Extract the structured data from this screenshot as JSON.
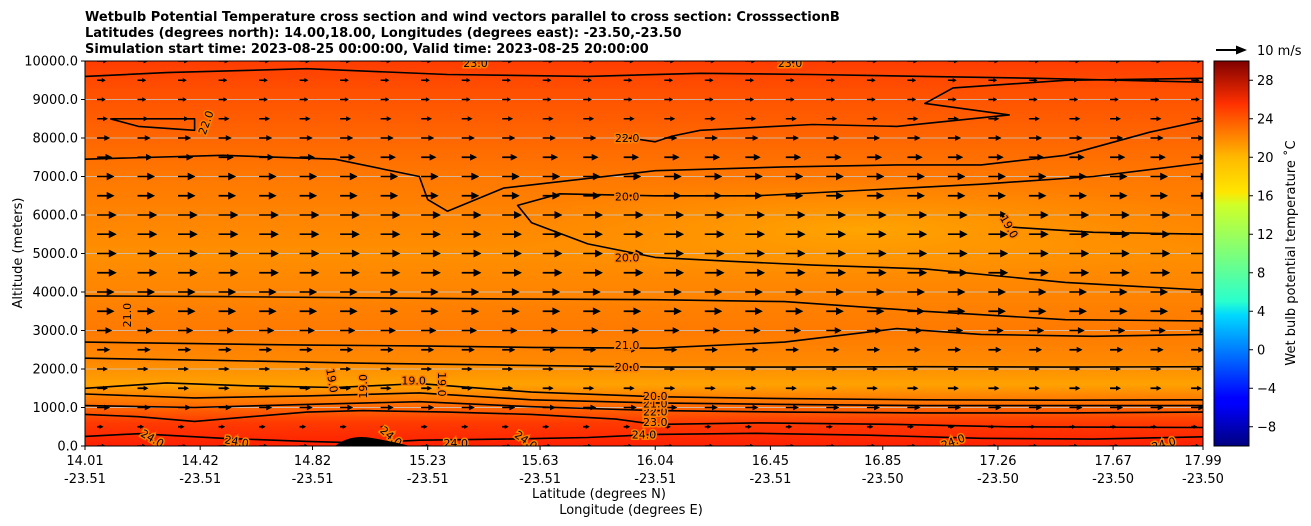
{
  "chart_data": {
    "type": "contour",
    "title_lines": [
      "Wetbulb Potential Temperature cross section and wind vectors parallel to cross section: CrosssectionB",
      "Latitudes (degrees north): 14.00,18.00, Longitudes (degrees east): -23.50,-23.50",
      "Simulation start time: 2023-08-25 00:00:00, Valid time: 2023-08-25 20:00:00"
    ],
    "ylabel": "Altitude (meters)",
    "xlabel_lines": [
      "Latitude (degrees N)",
      "Longitude (degrees E)"
    ],
    "ylim": [
      0,
      10000
    ],
    "y_ticks": [
      {
        "value": 0,
        "label": "0.0"
      },
      {
        "value": 1000,
        "label": "1000.0"
      },
      {
        "value": 2000,
        "label": "2000.0"
      },
      {
        "value": 3000,
        "label": "3000.0"
      },
      {
        "value": 4000,
        "label": "4000.0"
      },
      {
        "value": 5000,
        "label": "5000.0"
      },
      {
        "value": 6000,
        "label": "6000.0"
      },
      {
        "value": 7000,
        "label": "7000.0"
      },
      {
        "value": 8000,
        "label": "8000.0"
      },
      {
        "value": 9000,
        "label": "9000.0"
      },
      {
        "value": 10000,
        "label": "10000.0"
      }
    ],
    "xlim": [
      14.01,
      17.99
    ],
    "x_ticks": [
      {
        "value": 14.01,
        "lat": "14.01",
        "lon": "-23.51"
      },
      {
        "value": 14.42,
        "lat": "14.42",
        "lon": "-23.51"
      },
      {
        "value": 14.82,
        "lat": "14.82",
        "lon": "-23.51"
      },
      {
        "value": 15.23,
        "lat": "15.23",
        "lon": "-23.51"
      },
      {
        "value": 15.63,
        "lat": "15.63",
        "lon": "-23.51"
      },
      {
        "value": 16.04,
        "lat": "16.04",
        "lon": "-23.51"
      },
      {
        "value": 16.45,
        "lat": "16.45",
        "lon": "-23.51"
      },
      {
        "value": 16.85,
        "lat": "16.85",
        "lon": "-23.50"
      },
      {
        "value": 17.26,
        "lat": "17.26",
        "lon": "-23.50"
      },
      {
        "value": 17.67,
        "lat": "17.67",
        "lon": "-23.50"
      },
      {
        "value": 17.99,
        "lat": "17.99",
        "lon": "-23.50"
      }
    ],
    "colorbar": {
      "label": "Wet bulb potential temperature $^\\circ$C",
      "label_display": "Wet bulb potential temperature ˚C",
      "range": [
        -10,
        30
      ],
      "ticks": [
        -8,
        -4,
        0,
        4,
        8,
        12,
        16,
        20,
        24,
        28
      ],
      "tick_labels": [
        "−8",
        "−4",
        "0",
        "4",
        "8",
        "12",
        "16",
        "20",
        "24",
        "28"
      ],
      "colormap": "jet"
    },
    "quiver_key": {
      "label": "10 m/s"
    },
    "wind_levels_m": [
      0,
      500,
      1000,
      1500,
      2000,
      2500,
      3000,
      3500,
      4000,
      4500,
      5000,
      5500,
      6000,
      6500,
      7000,
      7500,
      8000,
      8500,
      9000,
      9500,
      10000
    ],
    "wind_speeds_ms": [
      4,
      3,
      6,
      5,
      5,
      6,
      7,
      8,
      8,
      9,
      9,
      9,
      9,
      8,
      8,
      7,
      6,
      5,
      4,
      4,
      5
    ],
    "wind_columns": 28,
    "contours": [
      {
        "level": 24,
        "points": [
          [
            14.01,
            250
          ],
          [
            14.2,
            320
          ],
          [
            14.5,
            200
          ],
          [
            14.8,
            120
          ],
          [
            15.0,
            80
          ],
          [
            15.2,
            150
          ],
          [
            15.5,
            180
          ],
          [
            15.8,
            220
          ],
          [
            16.04,
            300
          ],
          [
            16.4,
            330
          ],
          [
            16.8,
            280
          ],
          [
            17.2,
            200
          ],
          [
            17.6,
            180
          ],
          [
            17.99,
            240
          ]
        ]
      },
      {
        "level": 23,
        "points": [
          [
            14.01,
            820
          ],
          [
            14.2,
            760
          ],
          [
            14.4,
            640
          ],
          [
            14.6,
            760
          ],
          [
            14.8,
            880
          ],
          [
            15.0,
            920
          ],
          [
            15.3,
            880
          ],
          [
            15.6,
            820
          ],
          [
            15.9,
            700
          ],
          [
            16.04,
            560
          ],
          [
            16.4,
            600
          ],
          [
            16.9,
            560
          ],
          [
            17.3,
            500
          ],
          [
            17.99,
            480
          ]
        ]
      },
      {
        "level": 22,
        "points": [
          [
            14.01,
            1050
          ],
          [
            14.4,
            1000
          ],
          [
            14.8,
            1080
          ],
          [
            15.2,
            1150
          ],
          [
            15.6,
            1020
          ],
          [
            16.04,
            920
          ],
          [
            16.5,
            880
          ],
          [
            17.0,
            860
          ],
          [
            17.5,
            860
          ],
          [
            17.99,
            880
          ]
        ]
      },
      {
        "level": 21,
        "points": [
          [
            14.01,
            1350
          ],
          [
            14.4,
            1250
          ],
          [
            14.8,
            1300
          ],
          [
            15.2,
            1380
          ],
          [
            15.6,
            1200
          ],
          [
            16.04,
            1120
          ],
          [
            16.5,
            1080
          ],
          [
            17.0,
            1050
          ],
          [
            17.5,
            1050
          ],
          [
            17.99,
            1050
          ]
        ]
      },
      {
        "level": 20,
        "points": [
          [
            14.01,
            1500
          ],
          [
            14.3,
            1640
          ],
          [
            14.6,
            1560
          ],
          [
            14.9,
            1520
          ],
          [
            15.2,
            1620
          ],
          [
            15.6,
            1400
          ],
          [
            16.04,
            1280
          ],
          [
            16.5,
            1230
          ],
          [
            17.0,
            1200
          ],
          [
            17.5,
            1190
          ],
          [
            17.99,
            1200
          ]
        ]
      },
      {
        "level": 20,
        "points": [
          [
            14.01,
            2280
          ],
          [
            14.5,
            2220
          ],
          [
            15.0,
            2150
          ],
          [
            15.5,
            2100
          ],
          [
            16.04,
            2050
          ],
          [
            16.5,
            2050
          ],
          [
            17.0,
            2060
          ],
          [
            17.5,
            2050
          ],
          [
            17.99,
            2060
          ]
        ]
      },
      {
        "level": 21,
        "points": [
          [
            14.01,
            2700
          ],
          [
            14.4,
            2660
          ],
          [
            14.8,
            2620
          ],
          [
            15.2,
            2600
          ],
          [
            15.6,
            2560
          ],
          [
            16.04,
            2540
          ],
          [
            16.5,
            2700
          ],
          [
            16.9,
            3050
          ],
          [
            17.2,
            2900
          ],
          [
            17.6,
            2850
          ],
          [
            17.99,
            2900
          ]
        ]
      },
      {
        "level": 21,
        "points": [
          [
            14.01,
            3900
          ],
          [
            14.5,
            3880
          ],
          [
            15.0,
            3850
          ],
          [
            15.5,
            3820
          ],
          [
            16.04,
            3800
          ],
          [
            16.5,
            3750
          ],
          [
            17.0,
            3500
          ],
          [
            17.5,
            3280
          ],
          [
            17.99,
            3250
          ]
        ]
      },
      {
        "level": 20,
        "points": [
          [
            17.99,
            4050
          ],
          [
            17.5,
            4250
          ],
          [
            17.0,
            4600
          ],
          [
            16.6,
            4700
          ],
          [
            16.3,
            4800
          ],
          [
            16.04,
            4900
          ],
          [
            15.8,
            5250
          ],
          [
            15.6,
            5800
          ],
          [
            15.55,
            6250
          ],
          [
            15.7,
            6550
          ],
          [
            16.04,
            6500
          ],
          [
            16.4,
            6500
          ],
          [
            16.8,
            6650
          ],
          [
            17.2,
            6800
          ],
          [
            17.6,
            7000
          ],
          [
            17.99,
            7350
          ]
        ]
      },
      {
        "level": 21,
        "points": [
          [
            14.01,
            7450
          ],
          [
            14.5,
            7550
          ],
          [
            14.9,
            7450
          ],
          [
            15.2,
            7000
          ],
          [
            15.23,
            6400
          ],
          [
            15.3,
            6100
          ],
          [
            15.5,
            6700
          ],
          [
            16.04,
            7150
          ],
          [
            16.5,
            7250
          ],
          [
            16.9,
            7300
          ],
          [
            17.2,
            7300
          ],
          [
            17.5,
            7550
          ],
          [
            17.8,
            8150
          ],
          [
            17.99,
            8450
          ]
        ]
      },
      {
        "level": 22,
        "points": [
          [
            14.01,
            9600
          ],
          [
            14.3,
            9700
          ],
          [
            14.8,
            9800
          ],
          [
            15.3,
            9650
          ],
          [
            15.8,
            9600
          ],
          [
            16.2,
            9680
          ],
          [
            16.6,
            9650
          ],
          [
            17.0,
            9600
          ],
          [
            17.4,
            9550
          ],
          [
            17.99,
            9450
          ]
        ]
      },
      {
        "level": 22,
        "points": [
          [
            15.9,
            8050
          ],
          [
            16.04,
            7900
          ],
          [
            16.1,
            8050
          ],
          [
            16.2,
            8200
          ],
          [
            16.6,
            8350
          ],
          [
            16.9,
            8300
          ],
          [
            17.3,
            8600
          ],
          [
            17.0,
            8900
          ],
          [
            17.1,
            9300
          ],
          [
            17.5,
            9500
          ],
          [
            17.99,
            9550
          ]
        ]
      },
      {
        "level": 22,
        "points": [
          [
            14.1,
            8500
          ],
          [
            14.4,
            8500
          ],
          [
            14.4,
            8200
          ],
          [
            14.2,
            8300
          ],
          [
            14.1,
            8500
          ]
        ]
      },
      {
        "level": 19,
        "points": [
          [
            17.28,
            5700
          ],
          [
            17.6,
            5550
          ],
          [
            17.99,
            5500
          ]
        ]
      }
    ],
    "contour_labels": [
      {
        "text": "24.0",
        "x": 14.25,
        "y": 200,
        "rot": 30
      },
      {
        "text": "24.0",
        "x": 14.55,
        "y": 120,
        "rot": 10
      },
      {
        "text": "24.0",
        "x": 15.1,
        "y": 250,
        "rot": 40
      },
      {
        "text": "24.0",
        "x": 15.33,
        "y": 80,
        "rot": 0
      },
      {
        "text": "24.0",
        "x": 15.58,
        "y": 150,
        "rot": 35
      },
      {
        "text": "24.0",
        "x": 16.0,
        "y": 300,
        "rot": 0
      },
      {
        "text": "24.0",
        "x": 17.1,
        "y": 120,
        "rot": -20
      },
      {
        "text": "24.0",
        "x": 17.85,
        "y": 60,
        "rot": -15
      },
      {
        "text": "23.0",
        "x": 16.04,
        "y": 620,
        "rot": 0
      },
      {
        "text": "22.0",
        "x": 16.04,
        "y": 900,
        "rot": 0
      },
      {
        "text": "21.0",
        "x": 16.04,
        "y": 1100,
        "rot": 0
      },
      {
        "text": "20.0",
        "x": 16.04,
        "y": 1300,
        "rot": 0
      },
      {
        "text": "19.0",
        "x": 14.89,
        "y": 1700,
        "rot": 80
      },
      {
        "text": "19.0",
        "x": 15.18,
        "y": 1700,
        "rot": 0
      },
      {
        "text": "19.0",
        "x": 15.0,
        "y": 1550,
        "rot": -90
      },
      {
        "text": "19.0",
        "x": 15.28,
        "y": 1600,
        "rot": 90
      },
      {
        "text": "20.0",
        "x": 15.94,
        "y": 2050,
        "rot": 0
      },
      {
        "text": "21.0",
        "x": 15.94,
        "y": 2620,
        "rot": 0
      },
      {
        "text": "21.0",
        "x": 14.16,
        "y": 3400,
        "rot": -90
      },
      {
        "text": "20.0",
        "x": 15.94,
        "y": 4900,
        "rot": 0
      },
      {
        "text": "20.0",
        "x": 15.94,
        "y": 6480,
        "rot": 0
      },
      {
        "text": "19.0",
        "x": 17.3,
        "y": 5700,
        "rot": 60
      },
      {
        "text": "22.0",
        "x": 15.94,
        "y": 8000,
        "rot": 0
      },
      {
        "text": "22.0",
        "x": 14.44,
        "y": 8400,
        "rot": -70
      },
      {
        "text": "23.0",
        "x": 15.4,
        "y": 9950,
        "rot": 0
      },
      {
        "text": "23.0",
        "x": 16.52,
        "y": 9950,
        "rot": 0
      }
    ]
  }
}
